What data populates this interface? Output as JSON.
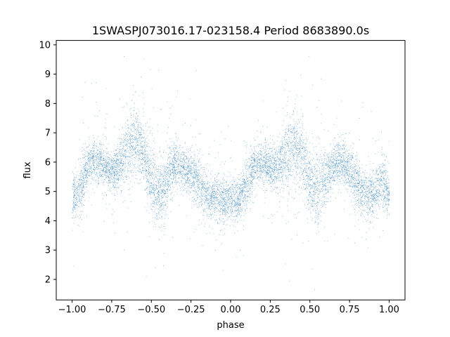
{
  "chart_data": {
    "type": "scatter",
    "title": "1SWASPJ073016.17-023158.4 Period 8683890.0s",
    "xlabel": "phase",
    "ylabel": "flux",
    "xlim": [
      -1.1,
      1.1
    ],
    "ylim": [
      1.3,
      10.15
    ],
    "xticks": [
      -1.0,
      -0.75,
      -0.5,
      -0.25,
      0.0,
      0.25,
      0.5,
      0.75,
      1.0
    ],
    "xtick_labels": [
      "−1.00",
      "−0.75",
      "−0.50",
      "−0.25",
      "0.00",
      "0.25",
      "0.50",
      "0.75",
      "1.00"
    ],
    "yticks": [
      2,
      3,
      4,
      5,
      6,
      7,
      8,
      9,
      10
    ],
    "ytick_labels": [
      "2",
      "3",
      "4",
      "5",
      "6",
      "7",
      "8",
      "9",
      "10"
    ],
    "grid": false,
    "point_color": "#1f77b4",
    "point_alpha": 0.55,
    "phase_profile": [
      [
        -1.0,
        4.7,
        0.35
      ],
      [
        -0.95,
        5.1,
        0.45
      ],
      [
        -0.9,
        6.0,
        0.35
      ],
      [
        -0.85,
        6.1,
        0.4
      ],
      [
        -0.8,
        5.8,
        0.35
      ],
      [
        -0.75,
        5.7,
        0.35
      ],
      [
        -0.7,
        5.9,
        0.45
      ],
      [
        -0.65,
        6.5,
        0.6
      ],
      [
        -0.6,
        6.8,
        0.6
      ],
      [
        -0.55,
        6.3,
        0.6
      ],
      [
        -0.5,
        5.3,
        0.6
      ],
      [
        -0.45,
        4.9,
        0.6
      ],
      [
        -0.4,
        5.4,
        0.5
      ],
      [
        -0.35,
        6.0,
        0.4
      ],
      [
        -0.3,
        5.8,
        0.35
      ],
      [
        -0.25,
        5.7,
        0.35
      ],
      [
        -0.2,
        5.3,
        0.45
      ],
      [
        -0.15,
        4.8,
        0.4
      ],
      [
        -0.1,
        4.9,
        0.35
      ],
      [
        -0.05,
        4.6,
        0.4
      ],
      [
        0.0,
        4.8,
        0.4
      ],
      [
        0.05,
        4.7,
        0.35
      ],
      [
        0.1,
        5.3,
        0.45
      ],
      [
        0.15,
        6.0,
        0.35
      ],
      [
        0.2,
        5.9,
        0.35
      ],
      [
        0.25,
        5.8,
        0.35
      ],
      [
        0.3,
        5.8,
        0.4
      ],
      [
        0.35,
        6.3,
        0.6
      ],
      [
        0.4,
        6.6,
        0.6
      ],
      [
        0.45,
        6.2,
        0.6
      ],
      [
        0.5,
        5.3,
        0.6
      ],
      [
        0.55,
        5.0,
        0.6
      ],
      [
        0.6,
        5.5,
        0.5
      ],
      [
        0.65,
        6.0,
        0.35
      ],
      [
        0.7,
        6.0,
        0.35
      ],
      [
        0.75,
        5.7,
        0.4
      ],
      [
        0.8,
        5.2,
        0.45
      ],
      [
        0.85,
        4.9,
        0.4
      ],
      [
        0.9,
        4.9,
        0.4
      ],
      [
        0.95,
        5.4,
        0.45
      ],
      [
        1.0,
        4.9,
        0.4
      ]
    ],
    "n_points": 9000
  }
}
